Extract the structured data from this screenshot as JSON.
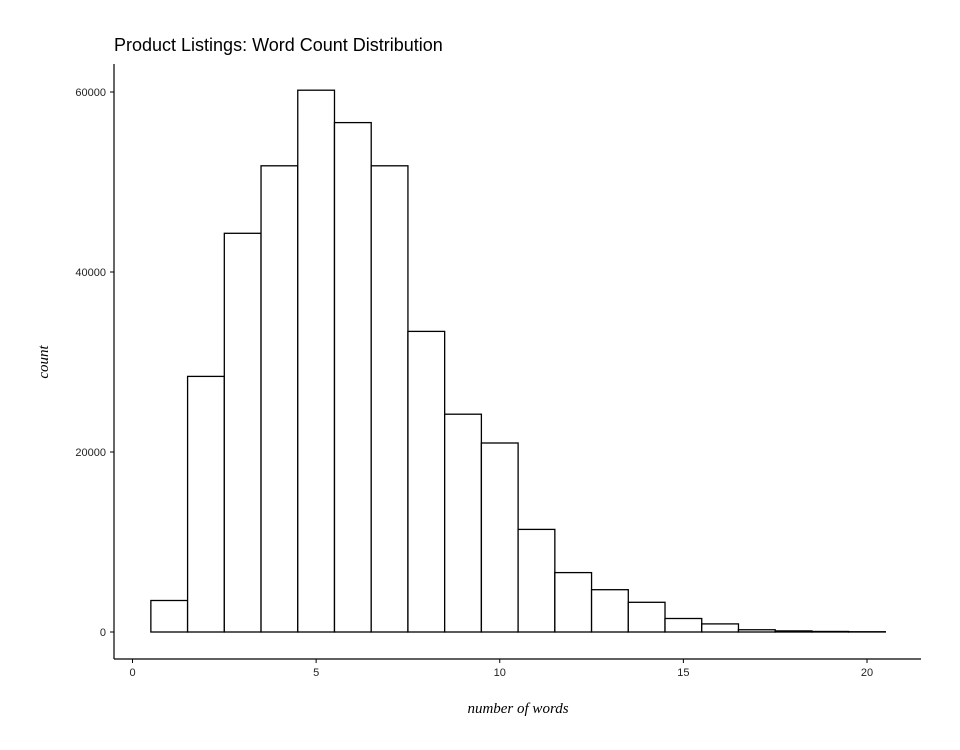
{
  "chart_data": {
    "type": "bar",
    "title": "Product Listings: Word Count Distribution",
    "xlabel": "number of words",
    "ylabel": "count",
    "bin_width": 1,
    "bins": [
      1,
      2,
      3,
      4,
      5,
      6,
      7,
      8,
      9,
      10,
      11,
      12,
      13,
      14,
      15,
      16,
      17,
      18,
      19,
      20
    ],
    "values": [
      3500,
      28400,
      44300,
      51800,
      60200,
      56600,
      51800,
      33400,
      24200,
      21000,
      11400,
      6600,
      4700,
      3300,
      1500,
      900,
      250,
      120,
      60,
      30
    ],
    "xlim": [
      0,
      21.25
    ],
    "ylim": [
      0,
      63000
    ],
    "x_ticks": [
      0,
      5,
      10,
      15,
      20
    ],
    "y_ticks": [
      0,
      20000,
      40000,
      60000
    ],
    "x_tick_labels": [
      "0",
      "5",
      "10",
      "15",
      "20"
    ],
    "y_tick_labels": [
      "0",
      "20000",
      "40000",
      "60000"
    ],
    "grid": false,
    "legend": "none",
    "bar_fill": "#ffffff",
    "bar_outline": "#000000"
  }
}
